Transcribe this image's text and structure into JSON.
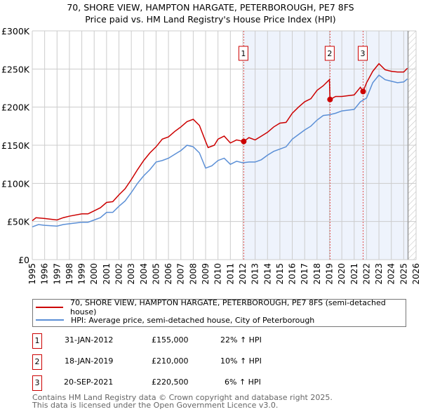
{
  "title": "70, SHORE VIEW, HAMPTON HARGATE, PETERBOROUGH, PE7 8FS",
  "subtitle": "Price paid vs. HM Land Registry's House Price Index (HPI)",
  "chart_data": {
    "type": "line",
    "title": "70, SHORE VIEW, HAMPTON HARGATE, PETERBOROUGH, PE7 8FS",
    "xlim": [
      1995,
      2026
    ],
    "ylim": [
      0,
      300000
    ],
    "yticks": [
      {
        "v": 0,
        "label": "£0"
      },
      {
        "v": 50000,
        "label": "£50K"
      },
      {
        "v": 100000,
        "label": "£100K"
      },
      {
        "v": 150000,
        "label": "£150K"
      },
      {
        "v": 200000,
        "label": "£200K"
      },
      {
        "v": 250000,
        "label": "£250K"
      },
      {
        "v": 300000,
        "label": "£300K"
      }
    ],
    "xticks": [
      "1995",
      "1996",
      "1997",
      "1998",
      "1999",
      "2000",
      "2001",
      "2002",
      "2003",
      "2004",
      "2005",
      "2006",
      "2007",
      "2008",
      "2009",
      "2010",
      "2011",
      "2012",
      "2013",
      "2014",
      "2015",
      "2016",
      "2017",
      "2018",
      "2019",
      "2020",
      "2021",
      "2022",
      "2023",
      "2024",
      "2025",
      "2026"
    ],
    "grid": true,
    "shaded_from": 2012.08,
    "hatched_from": 2025.35,
    "series": [
      {
        "name": "70, SHORE VIEW, HAMPTON HARGATE, PETERBOROUGH, PE7 8FS (semi-detached house)",
        "color": "#cc0000",
        "x": [
          1995,
          1995.3,
          1996,
          1997,
          1997.5,
          1998,
          1999,
          1999.5,
          2000,
          2000.5,
          2001,
          2001.5,
          2002,
          2002.5,
          2003,
          2003.5,
          2004,
          2004.5,
          2005,
          2005.5,
          2006,
          2006.5,
          2007,
          2007.5,
          2008,
          2008.5,
          2009,
          2009.2,
          2009.7,
          2010,
          2010.5,
          2011,
          2011.5,
          2012.08,
          2012.5,
          2013,
          2013.5,
          2014,
          2014.5,
          2015,
          2015.5,
          2016,
          2016.5,
          2017,
          2017.5,
          2018,
          2018.5,
          2019.0,
          2019.05,
          2019.5,
          2020,
          2020.5,
          2021,
          2021.5,
          2021.72,
          2022,
          2022.5,
          2023,
          2023.5,
          2024,
          2024.5,
          2025,
          2025.3
        ],
        "y": [
          51,
          55,
          54,
          52,
          55,
          57,
          60,
          60,
          64,
          68,
          75,
          76,
          85,
          93,
          105,
          118,
          130,
          140,
          148,
          158,
          161,
          168,
          174,
          181,
          184,
          176,
          155,
          147,
          150,
          158,
          162,
          153,
          157,
          155,
          160,
          157,
          162,
          167,
          174,
          179,
          180,
          192,
          200,
          207,
          211,
          222,
          228,
          236,
          210,
          214,
          214,
          215,
          216,
          226,
          220.5,
          232,
          247,
          257,
          249,
          247,
          246,
          246,
          251
        ]
      },
      {
        "name": "HPI: Average price, semi-detached house, City of Peterborough",
        "color": "#5b8fd6",
        "x": [
          1995,
          1995.5,
          1996,
          1997,
          1997.5,
          1998,
          1999,
          1999.5,
          2000,
          2000.5,
          2001,
          2001.5,
          2002,
          2002.5,
          2003,
          2003.5,
          2004,
          2004.5,
          2005,
          2005.5,
          2006,
          2006.5,
          2007,
          2007.5,
          2008,
          2008.5,
          2009,
          2009.5,
          2010,
          2010.5,
          2011,
          2011.5,
          2012,
          2012.5,
          2013,
          2013.5,
          2014,
          2014.5,
          2015,
          2015.5,
          2016,
          2016.5,
          2017,
          2017.5,
          2018,
          2018.5,
          2019,
          2019.5,
          2020,
          2020.5,
          2021,
          2021.5,
          2022,
          2022.5,
          2023,
          2023.5,
          2024,
          2024.5,
          2025,
          2025.3
        ],
        "y": [
          43,
          46,
          45,
          44,
          46,
          47,
          49,
          49,
          52,
          55,
          62,
          62,
          70,
          77,
          88,
          100,
          110,
          118,
          128,
          130,
          133,
          138,
          143,
          150,
          148,
          140,
          120,
          123,
          130,
          133,
          125,
          129,
          127,
          128,
          128,
          131,
          137,
          142,
          145,
          148,
          158,
          164,
          170,
          175,
          183,
          189,
          190,
          192,
          195,
          196,
          197,
          207,
          212,
          232,
          242,
          236,
          234,
          232,
          233,
          237
        ]
      }
    ],
    "y_units": "thousands GBP",
    "sales": [
      {
        "label": "1",
        "x": 2012.08,
        "value": 155000
      },
      {
        "label": "2",
        "x": 2019.05,
        "value": 210000
      },
      {
        "label": "3",
        "x": 2021.72,
        "value": 220500
      }
    ]
  },
  "legend": [
    {
      "label": "70, SHORE VIEW, HAMPTON HARGATE, PETERBOROUGH, PE7 8FS (semi-detached house)",
      "color": "#cc0000"
    },
    {
      "label": "HPI: Average price, semi-detached house, City of Peterborough",
      "color": "#5b8fd6"
    }
  ],
  "transactions": [
    {
      "num": "1",
      "date": "31-JAN-2012",
      "price": "£155,000",
      "hpi": "22% ↑ HPI"
    },
    {
      "num": "2",
      "date": "18-JAN-2019",
      "price": "£210,000",
      "hpi": "10% ↑ HPI"
    },
    {
      "num": "3",
      "date": "20-SEP-2021",
      "price": "£220,500",
      "hpi": "6% ↑ HPI"
    }
  ],
  "footer": [
    "Contains HM Land Registry data © Crown copyright and database right 2025.",
    "This data is licensed under the Open Government Licence v3.0."
  ]
}
